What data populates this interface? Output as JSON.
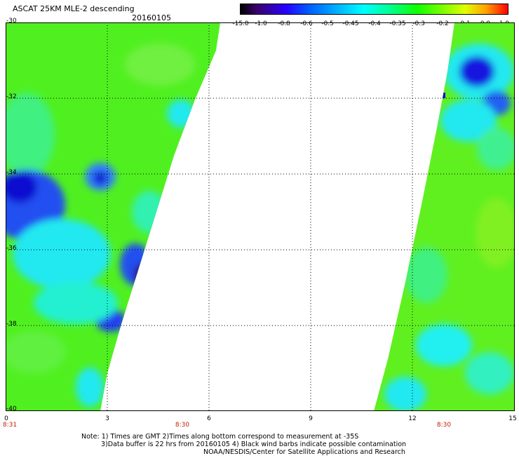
{
  "header": {
    "title": "ASCAT 25KM MLE-2 descending",
    "date": "20160105"
  },
  "colorbar": {
    "ticks": [
      "-15.0",
      "-1.0",
      "-0.8",
      "-0.6",
      "-0.5",
      "-0.45",
      "-0.4",
      "-0.35",
      "-0.3",
      "-0.2",
      "-0.1",
      "0.0",
      "1.0"
    ]
  },
  "map": {
    "y_labels": [
      "-30",
      "-32",
      "-34",
      "-36",
      "-38",
      "-40"
    ],
    "x_labels": [
      "0",
      "3",
      "6",
      "9",
      "12",
      "15"
    ],
    "time_labels": [
      "8:31",
      "8:30",
      "8:30"
    ],
    "swath_colors": {
      "green": "#50f020",
      "cyan": "#20f0e0",
      "blue": "#2050f0",
      "deep_blue": "#1010d8",
      "dark_purple": "#300070"
    }
  },
  "notes": {
    "line1": "Note: 1) Times are GMT 2)Times along bottom correspond to measurement at -35S",
    "line2": "3)Data buffer is 22 hrs from 20160105 4) Black wind barbs indicate possible contamination",
    "line3": "NOAA/NESDIS/Center for Satellite Applications and Research"
  }
}
